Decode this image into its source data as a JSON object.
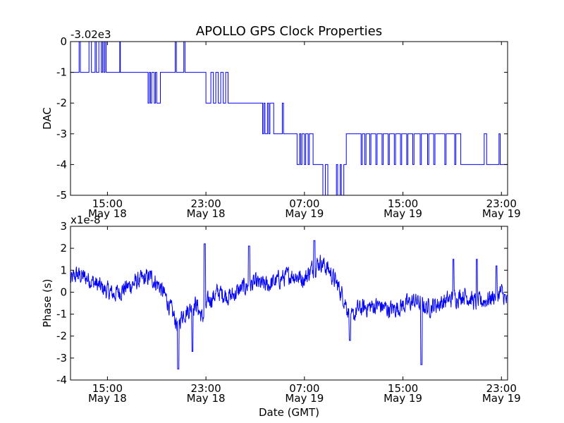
{
  "chart_data": [
    {
      "type": "line",
      "title": "APOLLO GPS Clock Properties",
      "ylabel": "DAC",
      "xlabel": "",
      "offset_text": "-3.02e3",
      "ylim": [
        -5,
        0
      ],
      "yticks": [
        0,
        -1,
        -2,
        -3,
        -4,
        -5
      ],
      "ytick_labels": [
        "0",
        "-1",
        "-2",
        "-3",
        "-4",
        "-5"
      ],
      "xlim_hours": [
        0,
        35.5
      ],
      "xticks_hours": [
        3,
        11,
        19,
        27,
        35
      ],
      "xtick_labels": [
        {
          "time": "15:00",
          "date": "May 18"
        },
        {
          "time": "23:00",
          "date": "May 18"
        },
        {
          "time": "07:00",
          "date": "May 19"
        },
        {
          "time": "15:00",
          "date": "May 19"
        },
        {
          "time": "23:00",
          "date": "May 19"
        }
      ],
      "x_unit": "hours since May 18 12:00 GMT",
      "series": [
        {
          "name": "DAC",
          "color": "#0000ff",
          "levels": [
            [
              0,
              -1
            ],
            [
              0.7,
              0
            ],
            [
              0.8,
              -1
            ],
            [
              1.5,
              0
            ],
            [
              1.7,
              -1
            ],
            [
              2.0,
              0
            ],
            [
              2.1,
              -1
            ],
            [
              2.3,
              0
            ],
            [
              2.5,
              -1
            ],
            [
              2.6,
              0
            ],
            [
              2.7,
              -1
            ],
            [
              2.8,
              0
            ],
            [
              2.9,
              -1
            ],
            [
              3.0,
              -1
            ],
            [
              4.0,
              0
            ],
            [
              4.05,
              -1
            ],
            [
              6.2,
              -1
            ],
            [
              6.3,
              -2
            ],
            [
              6.4,
              -1
            ],
            [
              6.5,
              -2
            ],
            [
              6.6,
              -1
            ],
            [
              6.8,
              -2
            ],
            [
              6.9,
              -1
            ],
            [
              7.0,
              -2
            ],
            [
              7.3,
              -1
            ],
            [
              8.5,
              0
            ],
            [
              8.6,
              -1
            ],
            [
              9.2,
              0
            ],
            [
              9.3,
              -1
            ],
            [
              11.0,
              -2
            ],
            [
              11.4,
              -1
            ],
            [
              11.6,
              -2
            ],
            [
              11.8,
              -1
            ],
            [
              12.0,
              -2
            ],
            [
              12.2,
              -1
            ],
            [
              12.4,
              -2
            ],
            [
              12.6,
              -1
            ],
            [
              12.8,
              -2
            ],
            [
              15.6,
              -3
            ],
            [
              15.7,
              -2
            ],
            [
              15.8,
              -3
            ],
            [
              16.0,
              -2
            ],
            [
              16.1,
              -3
            ],
            [
              16.2,
              -2
            ],
            [
              16.5,
              -3
            ],
            [
              17.2,
              -2
            ],
            [
              17.3,
              -3
            ],
            [
              18.0,
              -3
            ],
            [
              18.4,
              -4
            ],
            [
              18.6,
              -3
            ],
            [
              18.7,
              -4
            ],
            [
              18.8,
              -3
            ],
            [
              19.0,
              -4
            ],
            [
              19.1,
              -3
            ],
            [
              19.3,
              -4
            ],
            [
              19.4,
              -3
            ],
            [
              19.7,
              -4
            ],
            [
              20.5,
              -5
            ],
            [
              20.7,
              -4
            ],
            [
              20.9,
              -5
            ],
            [
              21.6,
              -4
            ],
            [
              21.7,
              -5
            ],
            [
              21.9,
              -4
            ],
            [
              22.0,
              -5
            ],
            [
              22.2,
              -4
            ],
            [
              22.4,
              -3
            ],
            [
              23.6,
              -4
            ],
            [
              23.7,
              -3
            ],
            [
              23.9,
              -4
            ],
            [
              24.0,
              -3
            ],
            [
              24.3,
              -4
            ],
            [
              24.4,
              -3
            ],
            [
              24.8,
              -4
            ],
            [
              24.9,
              -3
            ],
            [
              25.3,
              -4
            ],
            [
              25.4,
              -3
            ],
            [
              25.8,
              -4
            ],
            [
              25.9,
              -3
            ],
            [
              26.3,
              -4
            ],
            [
              26.4,
              -3
            ],
            [
              26.8,
              -4
            ],
            [
              26.9,
              -3
            ],
            [
              27.3,
              -4
            ],
            [
              27.4,
              -3
            ],
            [
              27.8,
              -4
            ],
            [
              27.9,
              -3
            ],
            [
              28.4,
              -4
            ],
            [
              28.5,
              -3
            ],
            [
              29.0,
              -4
            ],
            [
              29.1,
              -3
            ],
            [
              29.5,
              -4
            ],
            [
              29.6,
              -3
            ],
            [
              30.4,
              -4
            ],
            [
              30.5,
              -3
            ],
            [
              31.2,
              -4
            ],
            [
              31.3,
              -3
            ],
            [
              31.7,
              -4
            ],
            [
              33.6,
              -3
            ],
            [
              33.8,
              -4
            ],
            [
              34.8,
              -3
            ],
            [
              34.9,
              -4
            ],
            [
              35.5,
              -4
            ]
          ]
        }
      ]
    },
    {
      "type": "line",
      "title": "",
      "ylabel": "Phase (s)",
      "xlabel": "Date (GMT)",
      "offset_text": "x1e-8",
      "ylim": [
        -4,
        3
      ],
      "yticks": [
        3,
        2,
        1,
        0,
        -1,
        -2,
        -3,
        -4
      ],
      "ytick_labels": [
        "3",
        "2",
        "1",
        "0",
        "-1",
        "-2",
        "-3",
        "-4"
      ],
      "xlim_hours": [
        0,
        35.5
      ],
      "xticks_hours": [
        3,
        11,
        19,
        27,
        35
      ],
      "xtick_labels": [
        {
          "time": "15:00",
          "date": "May 18"
        },
        {
          "time": "23:00",
          "date": "May 18"
        },
        {
          "time": "07:00",
          "date": "May 19"
        },
        {
          "time": "15:00",
          "date": "May 19"
        },
        {
          "time": "23:00",
          "date": "May 19"
        }
      ],
      "x_unit": "hours since May 18 12:00 GMT",
      "series": [
        {
          "name": "Phase",
          "color": "#0000ff",
          "anchors": [
            [
              0,
              0.5
            ],
            [
              0.5,
              0.8
            ],
            [
              1.5,
              0.6
            ],
            [
              2.5,
              0.2
            ],
            [
              3.5,
              -0.1
            ],
            [
              4.5,
              0.2
            ],
            [
              5.5,
              0.5
            ],
            [
              6.5,
              0.7
            ],
            [
              7.2,
              0.3
            ],
            [
              7.8,
              -0.3
            ],
            [
              8.3,
              -1.0
            ],
            [
              8.7,
              -1.5
            ],
            [
              9.1,
              -1.0
            ],
            [
              9.6,
              -0.8
            ],
            [
              10.2,
              -0.5
            ],
            [
              10.7,
              -1.2
            ],
            [
              11.2,
              -0.4
            ],
            [
              12.0,
              0.0
            ],
            [
              13.0,
              -0.2
            ],
            [
              14.0,
              0.2
            ],
            [
              15.0,
              0.4
            ],
            [
              16.0,
              0.3
            ],
            [
              17.0,
              0.6
            ],
            [
              18.0,
              0.8
            ],
            [
              19.0,
              0.6
            ],
            [
              19.5,
              1.0
            ],
            [
              20.3,
              1.4
            ],
            [
              21.0,
              1.0
            ],
            [
              21.8,
              0.2
            ],
            [
              22.3,
              -0.4
            ],
            [
              22.8,
              -1.3
            ],
            [
              23.3,
              -0.8
            ],
            [
              24.0,
              -0.7
            ],
            [
              25.0,
              -0.6
            ],
            [
              26.0,
              -0.8
            ],
            [
              27.0,
              -0.6
            ],
            [
              28.0,
              -0.4
            ],
            [
              29.0,
              -0.7
            ],
            [
              30.0,
              -0.5
            ],
            [
              31.0,
              -0.3
            ],
            [
              32.0,
              -0.1
            ],
            [
              33.0,
              -0.5
            ],
            [
              34.0,
              -0.3
            ],
            [
              35.0,
              0.0
            ],
            [
              35.5,
              -0.5
            ]
          ],
          "noise_amplitude": 0.35,
          "spikes": [
            [
              8.75,
              -3.5
            ],
            [
              9.9,
              -2.7
            ],
            [
              10.9,
              2.2
            ],
            [
              14.5,
              2.1
            ],
            [
              19.8,
              2.35
            ],
            [
              22.7,
              -2.2
            ],
            [
              28.5,
              -3.3
            ],
            [
              31.1,
              1.5
            ],
            [
              33.0,
              1.5
            ],
            [
              34.6,
              1.2
            ]
          ]
        }
      ]
    }
  ]
}
